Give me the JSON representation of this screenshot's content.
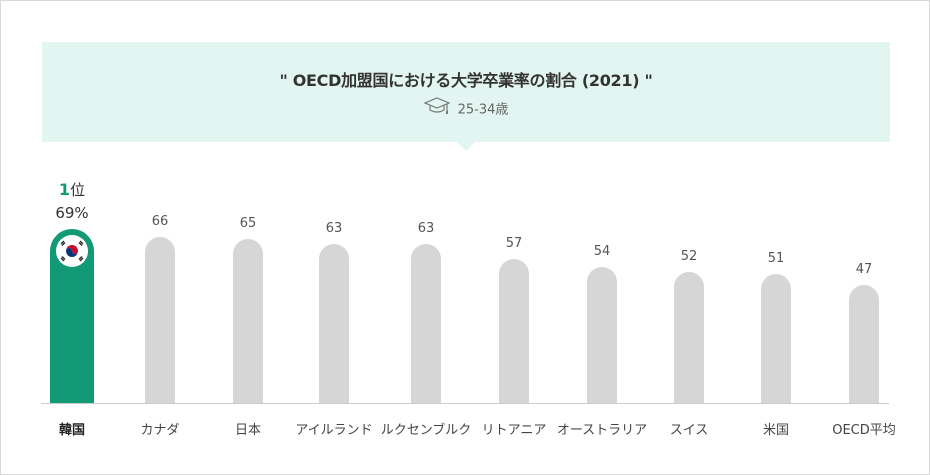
{
  "title": "\" OECD加盟国における大学卒業率の割合 (2021) \"",
  "subtitle": "25-34歳",
  "icons": {
    "subtitle_icon": "graduation-cap-icon",
    "flag_icon": "korea-flag-icon"
  },
  "colors": {
    "highlight": "#129a77",
    "bar": "#d6d6d6",
    "title_bg": "#e2f5f0"
  },
  "rank": {
    "number": "1",
    "suffix": "位"
  },
  "chart_data": {
    "type": "bar",
    "title": "\" OECD加盟国における大学卒業率の割合 (2021) \"",
    "subtitle": "25-34歳",
    "categories": [
      "韓国",
      "カナダ",
      "日本",
      "アイルランド",
      "ルクセンブルク",
      "リトアニア",
      "オーストラリア",
      "スイス",
      "米国",
      "OECD平均"
    ],
    "values": [
      69,
      66,
      65,
      63,
      63,
      57,
      54,
      52,
      51,
      47
    ],
    "value_labels": [
      "69%",
      "66",
      "65",
      "63",
      "63",
      "57",
      "54",
      "52",
      "51",
      "47"
    ],
    "highlight_index": 0,
    "xlabel": "",
    "ylabel": "",
    "grid": false
  }
}
